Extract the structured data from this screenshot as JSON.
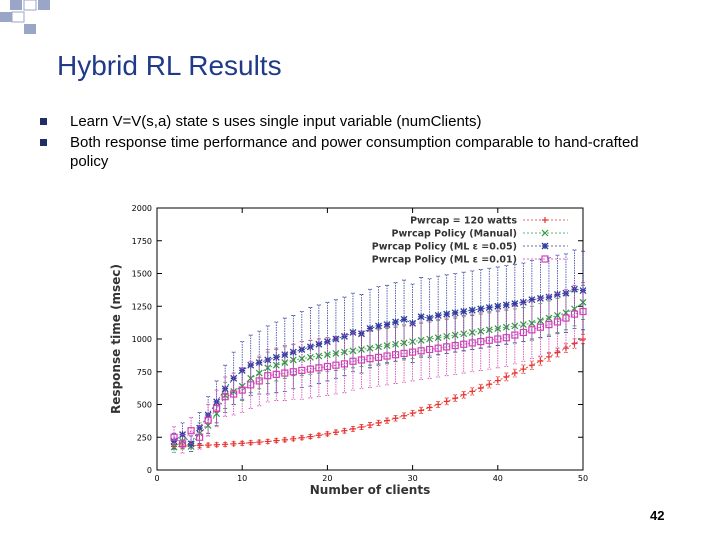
{
  "slide": {
    "title": "Hybrid RL Results",
    "bullets": [
      "Learn V=V(s,a) state s uses single input variable (numClients)",
      "Both response time performance and power consumption comparable to hand-crafted policy"
    ],
    "slide_number": "42",
    "colors": {
      "title": "#1f3a8a",
      "bullet": "#1f2f66"
    }
  },
  "chart_data": {
    "type": "line",
    "title": "",
    "xlabel": "Number of clients",
    "ylabel": "Response time (msec)",
    "xlim": [
      0,
      50
    ],
    "ylim": [
      0,
      2000
    ],
    "xticks": [
      0,
      10,
      20,
      30,
      40,
      50
    ],
    "yticks": [
      0,
      250,
      500,
      750,
      1000,
      1250,
      1500,
      1750,
      2000
    ],
    "legend_position": "top-right",
    "series": [
      {
        "name": "Pwrcap = 120 watts",
        "color": "#e8332e",
        "marker": "plus",
        "x": [
          2,
          3,
          4,
          5,
          6,
          7,
          8,
          9,
          10,
          11,
          12,
          13,
          14,
          15,
          16,
          17,
          18,
          19,
          20,
          21,
          22,
          23,
          24,
          25,
          26,
          27,
          28,
          29,
          30,
          31,
          32,
          33,
          34,
          35,
          36,
          37,
          38,
          39,
          40,
          41,
          42,
          43,
          44,
          45,
          46,
          47,
          48,
          49,
          50
        ],
        "y": [
          180,
          182,
          185,
          188,
          190,
          193,
          196,
          200,
          204,
          208,
          213,
          218,
          224,
          230,
          238,
          246,
          255,
          265,
          276,
          288,
          300,
          314,
          328,
          343,
          360,
          377,
          395,
          414,
          434,
          455,
          477,
          500,
          524,
          548,
          574,
          600,
          626,
          654,
          682,
          711,
          740,
          770,
          800,
          832,
          864,
          897,
          930,
          965,
          1000
        ],
        "err": [
          15,
          15,
          15,
          15,
          15,
          15,
          15,
          15,
          15,
          15,
          15,
          15,
          15,
          15,
          15,
          15,
          15,
          15,
          15,
          18,
          18,
          18,
          20,
          20,
          20,
          20,
          22,
          22,
          22,
          24,
          24,
          24,
          26,
          26,
          26,
          28,
          28,
          28,
          30,
          30,
          30,
          32,
          32,
          32,
          34,
          34,
          34,
          36,
          36
        ]
      },
      {
        "name": "Pwrcap Policy (Manual)",
        "color": "#2e9e3e",
        "marker": "x",
        "x": [
          2,
          3,
          4,
          5,
          6,
          7,
          8,
          9,
          10,
          11,
          12,
          13,
          14,
          15,
          16,
          17,
          18,
          19,
          20,
          21,
          22,
          23,
          24,
          25,
          26,
          27,
          28,
          29,
          30,
          31,
          32,
          33,
          34,
          35,
          36,
          37,
          38,
          39,
          40,
          41,
          42,
          43,
          44,
          45,
          46,
          47,
          48,
          49,
          50
        ],
        "y": [
          175,
          220,
          180,
          280,
          340,
          430,
          570,
          600,
          640,
          700,
          740,
          780,
          800,
          820,
          840,
          850,
          860,
          870,
          880,
          890,
          900,
          910,
          920,
          930,
          940,
          950,
          960,
          970,
          980,
          990,
          1000,
          1010,
          1020,
          1030,
          1040,
          1050,
          1060,
          1070,
          1080,
          1090,
          1100,
          1110,
          1120,
          1140,
          1160,
          1180,
          1200,
          1230,
          1280
        ],
        "err": [
          40,
          60,
          40,
          80,
          80,
          90,
          100,
          100,
          110,
          110,
          120,
          120,
          120,
          120,
          120,
          130,
          130,
          130,
          130,
          130,
          130,
          130,
          130,
          130,
          130,
          130,
          130,
          130,
          130,
          130,
          130,
          130,
          130,
          130,
          130,
          130,
          130,
          130,
          130,
          130,
          130,
          130,
          130,
          130,
          130,
          130,
          130,
          130,
          130
        ]
      },
      {
        "name": "Pwrcap Policy (ML ε =0.05)",
        "color": "#2f3f9e",
        "marker": "star",
        "x": [
          2,
          3,
          4,
          5,
          6,
          7,
          8,
          9,
          10,
          11,
          12,
          13,
          14,
          15,
          16,
          17,
          18,
          19,
          20,
          21,
          22,
          23,
          24,
          25,
          26,
          27,
          28,
          29,
          30,
          31,
          32,
          33,
          34,
          35,
          36,
          37,
          38,
          39,
          40,
          41,
          42,
          43,
          44,
          45,
          46,
          47,
          48,
          49,
          50
        ],
        "y": [
          220,
          270,
          200,
          320,
          420,
          520,
          620,
          700,
          760,
          800,
          820,
          840,
          860,
          880,
          900,
          920,
          940,
          960,
          980,
          1000,
          1020,
          1050,
          1040,
          1080,
          1100,
          1110,
          1130,
          1150,
          1120,
          1170,
          1160,
          1180,
          1190,
          1200,
          1210,
          1220,
          1230,
          1240,
          1250,
          1260,
          1270,
          1280,
          1300,
          1310,
          1320,
          1340,
          1350,
          1380,
          1370
        ],
        "err": [
          60,
          90,
          60,
          120,
          140,
          160,
          180,
          200,
          220,
          230,
          240,
          260,
          270,
          280,
          280,
          290,
          300,
          300,
          300,
          300,
          300,
          300,
          300,
          300,
          300,
          300,
          300,
          300,
          300,
          300,
          300,
          300,
          300,
          300,
          300,
          300,
          300,
          300,
          300,
          300,
          300,
          300,
          300,
          300,
          300,
          300,
          300,
          300,
          300
        ]
      },
      {
        "name": "Pwrcap Policy (ML ε =0.01)",
        "color": "#d33fb8",
        "marker": "square",
        "x": [
          2,
          3,
          4,
          5,
          6,
          7,
          8,
          9,
          10,
          11,
          12,
          13,
          14,
          15,
          16,
          17,
          18,
          19,
          20,
          21,
          22,
          23,
          24,
          25,
          26,
          27,
          28,
          29,
          30,
          31,
          32,
          33,
          34,
          35,
          36,
          37,
          38,
          39,
          40,
          41,
          42,
          43,
          44,
          45,
          46,
          47,
          48,
          49,
          50
        ],
        "y": [
          250,
          200,
          300,
          250,
          380,
          470,
          560,
          580,
          610,
          650,
          680,
          720,
          730,
          740,
          750,
          760,
          770,
          780,
          790,
          800,
          810,
          830,
          840,
          850,
          860,
          870,
          880,
          890,
          900,
          910,
          920,
          930,
          940,
          950,
          960,
          970,
          980,
          990,
          1000,
          1010,
          1030,
          1050,
          1070,
          1090,
          1110,
          1130,
          1160,
          1190,
          1210
        ],
        "err": [
          80,
          70,
          100,
          90,
          120,
          140,
          150,
          160,
          170,
          180,
          190,
          200,
          200,
          210,
          210,
          220,
          220,
          220,
          220,
          220,
          220,
          220,
          220,
          220,
          220,
          220,
          220,
          220,
          220,
          220,
          220,
          220,
          220,
          220,
          220,
          220,
          220,
          220,
          220,
          220,
          220,
          220,
          220,
          220,
          220,
          220,
          220,
          220,
          220
        ]
      }
    ]
  }
}
